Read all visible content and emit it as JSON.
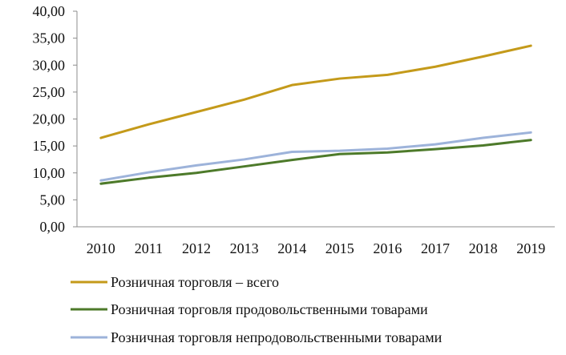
{
  "chart_data": {
    "type": "line",
    "title": "",
    "xlabel": "",
    "ylabel": "",
    "categories": [
      "2010",
      "2011",
      "2012",
      "2013",
      "2014",
      "2015",
      "2016",
      "2017",
      "2018",
      "2019"
    ],
    "y_ticks": [
      "0,00",
      "5,00",
      "10,00",
      "15,00",
      "20,00",
      "25,00",
      "30,00",
      "35,00",
      "40,00"
    ],
    "ylim": [
      0,
      40
    ],
    "grid": false,
    "legend_position": "bottom",
    "series": [
      {
        "name": "Розничная торговля – всего",
        "color": "#C49A1A",
        "values": [
          16.5,
          19.0,
          21.3,
          23.6,
          26.3,
          27.5,
          28.2,
          29.7,
          31.6,
          33.6
        ]
      },
      {
        "name": "Розничная торговля продовольственными товарами",
        "color": "#4D7A2A",
        "values": [
          8.0,
          9.1,
          10.0,
          11.2,
          12.4,
          13.5,
          13.8,
          14.4,
          15.1,
          16.1
        ]
      },
      {
        "name": "Розничная торговля непродовольственными товарами",
        "color": "#9DB3DA",
        "values": [
          8.6,
          10.1,
          11.4,
          12.5,
          13.9,
          14.1,
          14.5,
          15.3,
          16.5,
          17.5
        ]
      }
    ]
  }
}
